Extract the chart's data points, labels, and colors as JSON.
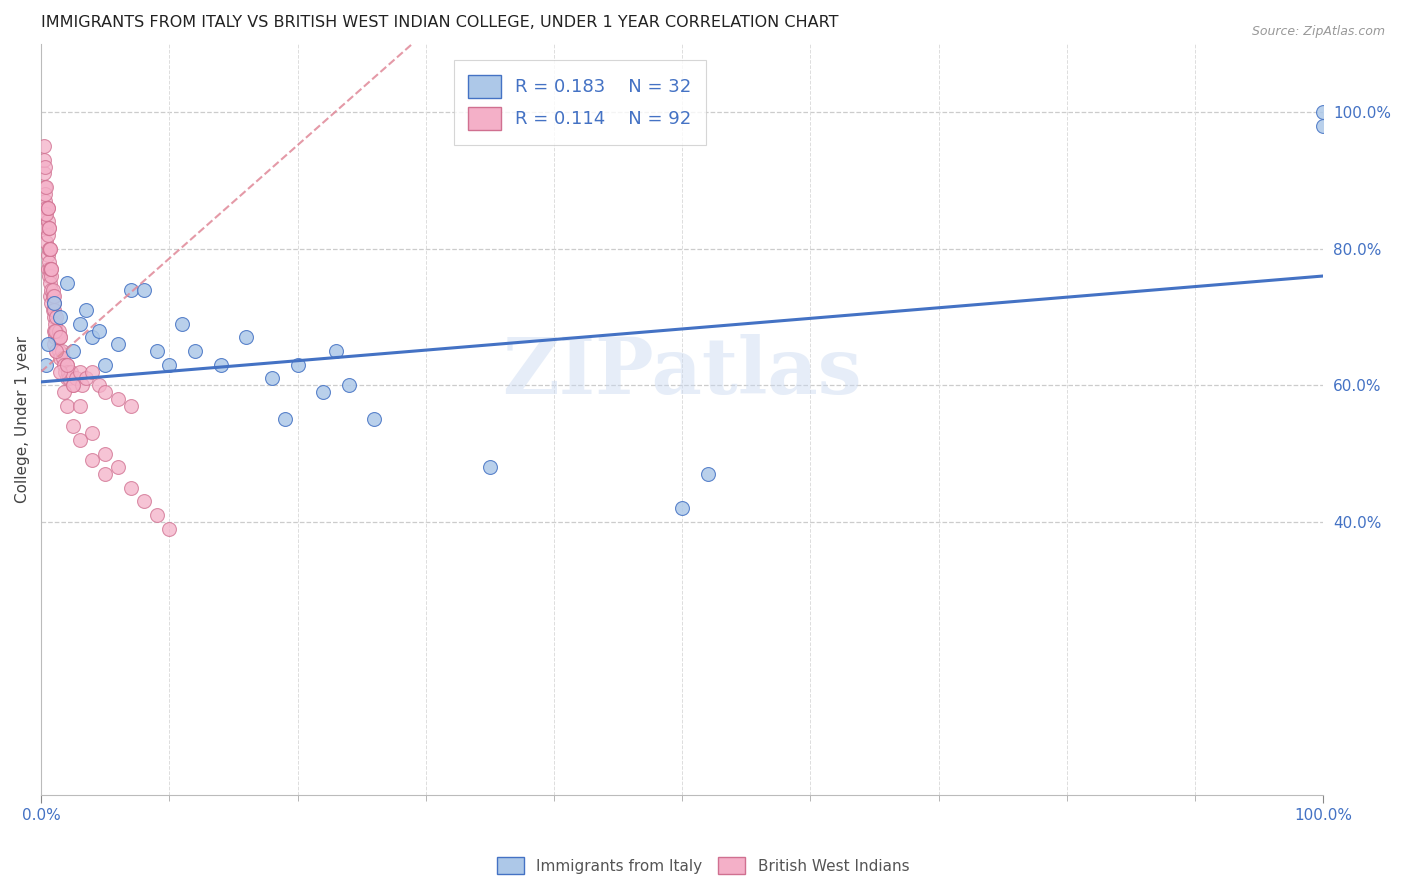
{
  "title": "IMMIGRANTS FROM ITALY VS BRITISH WEST INDIAN COLLEGE, UNDER 1 YEAR CORRELATION CHART",
  "source": "Source: ZipAtlas.com",
  "ylabel": "College, Under 1 year",
  "r_italy": 0.183,
  "n_italy": 32,
  "r_bwi": 0.114,
  "n_bwi": 92,
  "italy_color": "#adc8e8",
  "bwi_color": "#f4b0c8",
  "italy_line_color": "#4472c4",
  "bwi_line_color": "#e08898",
  "watermark": "ZIPatlas",
  "watermark_color": "#c8d8f0",
  "italy_x": [
    0.4,
    0.5,
    1.0,
    1.5,
    2.0,
    2.5,
    3.0,
    3.5,
    4.0,
    4.5,
    5.0,
    6.0,
    7.0,
    8.0,
    9.0,
    10.0,
    11.0,
    12.0,
    14.0,
    16.0,
    18.0,
    19.0,
    20.0,
    22.0,
    23.0,
    24.0,
    26.0,
    35.0,
    50.0,
    52.0,
    100.0,
    100.0
  ],
  "italy_y": [
    63,
    66,
    72,
    70,
    75,
    65,
    69,
    71,
    67,
    68,
    63,
    66,
    74,
    74,
    65,
    63,
    69,
    65,
    63,
    67,
    61,
    55,
    63,
    59,
    65,
    60,
    55,
    48,
    42,
    47,
    100,
    98
  ],
  "bwi_x": [
    0.2,
    0.2,
    0.3,
    0.3,
    0.3,
    0.4,
    0.4,
    0.4,
    0.5,
    0.5,
    0.5,
    0.5,
    0.6,
    0.6,
    0.6,
    0.7,
    0.7,
    0.7,
    0.8,
    0.8,
    0.8,
    0.9,
    0.9,
    1.0,
    1.0,
    1.0,
    1.0,
    1.1,
    1.1,
    1.2,
    1.2,
    1.3,
    1.4,
    1.4,
    1.5,
    1.5,
    1.6,
    1.7,
    1.8,
    1.9,
    2.0,
    2.0,
    2.1,
    2.2,
    2.3,
    2.5,
    2.7,
    3.0,
    3.2,
    3.5,
    4.0,
    4.5,
    5.0,
    6.0,
    7.0,
    0.3,
    0.4,
    0.5,
    0.6,
    0.7,
    0.8,
    0.9,
    1.0,
    1.1,
    1.2,
    1.5,
    1.8,
    2.0,
    2.5,
    3.0,
    4.0,
    5.0,
    0.2,
    0.3,
    0.4,
    0.5,
    0.6,
    0.7,
    0.8,
    1.0,
    1.2,
    1.5,
    2.0,
    2.5,
    3.0,
    4.0,
    5.0,
    6.0,
    7.0,
    8.0,
    9.0,
    10.0
  ],
  "bwi_y": [
    91,
    93,
    89,
    87,
    85,
    86,
    83,
    81,
    84,
    82,
    79,
    77,
    80,
    78,
    76,
    77,
    75,
    73,
    76,
    74,
    72,
    73,
    71,
    72,
    70,
    68,
    66,
    69,
    67,
    68,
    65,
    67,
    68,
    65,
    67,
    64,
    65,
    64,
    63,
    62,
    63,
    61,
    62,
    61,
    62,
    60,
    61,
    62,
    60,
    61,
    62,
    60,
    59,
    58,
    57,
    88,
    85,
    86,
    83,
    80,
    77,
    74,
    71,
    68,
    65,
    62,
    59,
    57,
    54,
    52,
    49,
    47,
    95,
    92,
    89,
    86,
    83,
    80,
    77,
    73,
    70,
    67,
    63,
    60,
    57,
    53,
    50,
    48,
    45,
    43,
    41,
    39
  ]
}
